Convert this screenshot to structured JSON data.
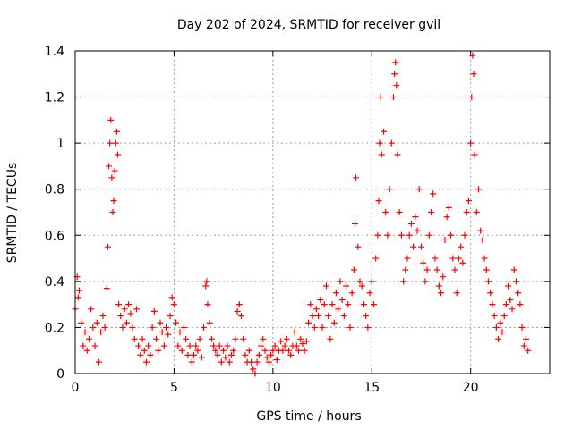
{
  "chart_data": {
    "type": "scatter",
    "title": "Day 202 of 2024, SRMTID for receiver gvil",
    "xlabel": "GPS time / hours",
    "ylabel": "SRMTID / TECUs",
    "xlim": [
      0,
      24
    ],
    "ylim": [
      0,
      1.4
    ],
    "x_ticks": [
      0,
      5,
      10,
      15,
      20
    ],
    "x_tick_labels": [
      "0",
      "5",
      "10",
      "15",
      "20"
    ],
    "y_ticks": [
      0,
      0.2,
      0.4,
      0.6,
      0.8,
      1.0,
      1.2,
      1.4
    ],
    "y_tick_labels": [
      "0",
      "0.2",
      "0.4",
      "0.6",
      "0.8",
      "1",
      "1.2",
      "1.4"
    ],
    "grid": true,
    "marker": "+",
    "series": [
      {
        "name": "SRMTID",
        "color": "#ff0000",
        "points": [
          [
            0.0,
            0.28
          ],
          [
            0.1,
            0.42
          ],
          [
            0.15,
            0.33
          ],
          [
            0.2,
            0.36
          ],
          [
            0.3,
            0.22
          ],
          [
            0.4,
            0.12
          ],
          [
            0.5,
            0.18
          ],
          [
            0.6,
            0.1
          ],
          [
            0.7,
            0.15
          ],
          [
            0.8,
            0.28
          ],
          [
            0.9,
            0.2
          ],
          [
            1.0,
            0.12
          ],
          [
            1.1,
            0.22
          ],
          [
            1.2,
            0.05
          ],
          [
            1.3,
            0.18
          ],
          [
            1.4,
            0.25
          ],
          [
            1.5,
            0.2
          ],
          [
            1.6,
            0.37
          ],
          [
            1.65,
            0.55
          ],
          [
            1.7,
            0.9
          ],
          [
            1.75,
            1.0
          ],
          [
            1.8,
            1.1
          ],
          [
            1.85,
            0.85
          ],
          [
            1.9,
            0.7
          ],
          [
            1.95,
            0.75
          ],
          [
            2.0,
            0.88
          ],
          [
            2.05,
            1.0
          ],
          [
            2.1,
            1.05
          ],
          [
            2.15,
            0.95
          ],
          [
            2.2,
            0.3
          ],
          [
            2.3,
            0.25
          ],
          [
            2.4,
            0.2
          ],
          [
            2.5,
            0.28
          ],
          [
            2.6,
            0.22
          ],
          [
            2.7,
            0.3
          ],
          [
            2.8,
            0.26
          ],
          [
            2.9,
            0.2
          ],
          [
            3.0,
            0.15
          ],
          [
            3.1,
            0.28
          ],
          [
            3.2,
            0.12
          ],
          [
            3.3,
            0.08
          ],
          [
            3.4,
            0.15
          ],
          [
            3.5,
            0.1
          ],
          [
            3.6,
            0.05
          ],
          [
            3.7,
            0.12
          ],
          [
            3.8,
            0.08
          ],
          [
            3.9,
            0.2
          ],
          [
            4.0,
            0.27
          ],
          [
            4.1,
            0.15
          ],
          [
            4.2,
            0.1
          ],
          [
            4.3,
            0.22
          ],
          [
            4.4,
            0.18
          ],
          [
            4.5,
            0.12
          ],
          [
            4.6,
            0.2
          ],
          [
            4.7,
            0.17
          ],
          [
            4.8,
            0.25
          ],
          [
            4.9,
            0.33
          ],
          [
            5.0,
            0.3
          ],
          [
            5.1,
            0.22
          ],
          [
            5.2,
            0.12
          ],
          [
            5.3,
            0.18
          ],
          [
            5.4,
            0.1
          ],
          [
            5.5,
            0.2
          ],
          [
            5.6,
            0.15
          ],
          [
            5.7,
            0.08
          ],
          [
            5.8,
            0.12
          ],
          [
            5.9,
            0.05
          ],
          [
            6.0,
            0.08
          ],
          [
            6.1,
            0.12
          ],
          [
            6.2,
            0.1
          ],
          [
            6.3,
            0.15
          ],
          [
            6.4,
            0.07
          ],
          [
            6.5,
            0.2
          ],
          [
            6.6,
            0.38
          ],
          [
            6.65,
            0.4
          ],
          [
            6.7,
            0.3
          ],
          [
            6.8,
            0.22
          ],
          [
            6.9,
            0.15
          ],
          [
            7.0,
            0.12
          ],
          [
            7.1,
            0.1
          ],
          [
            7.2,
            0.08
          ],
          [
            7.3,
            0.12
          ],
          [
            7.4,
            0.05
          ],
          [
            7.5,
            0.1
          ],
          [
            7.6,
            0.07
          ],
          [
            7.7,
            0.12
          ],
          [
            7.8,
            0.05
          ],
          [
            7.9,
            0.08
          ],
          [
            8.0,
            0.1
          ],
          [
            8.1,
            0.15
          ],
          [
            8.2,
            0.27
          ],
          [
            8.3,
            0.3
          ],
          [
            8.4,
            0.25
          ],
          [
            8.5,
            0.15
          ],
          [
            8.6,
            0.08
          ],
          [
            8.7,
            0.05
          ],
          [
            8.8,
            0.1
          ],
          [
            8.9,
            0.05
          ],
          [
            9.0,
            0.02
          ],
          [
            9.1,
            0.0
          ],
          [
            9.2,
            0.05
          ],
          [
            9.3,
            0.08
          ],
          [
            9.4,
            0.12
          ],
          [
            9.5,
            0.15
          ],
          [
            9.6,
            0.1
          ],
          [
            9.7,
            0.07
          ],
          [
            9.8,
            0.05
          ],
          [
            9.9,
            0.08
          ],
          [
            10.0,
            0.1
          ],
          [
            10.1,
            0.12
          ],
          [
            10.2,
            0.06
          ],
          [
            10.3,
            0.1
          ],
          [
            10.4,
            0.14
          ],
          [
            10.5,
            0.1
          ],
          [
            10.6,
            0.12
          ],
          [
            10.7,
            0.15
          ],
          [
            10.8,
            0.1
          ],
          [
            10.9,
            0.08
          ],
          [
            11.0,
            0.12
          ],
          [
            11.1,
            0.18
          ],
          [
            11.2,
            0.12
          ],
          [
            11.3,
            0.1
          ],
          [
            11.4,
            0.15
          ],
          [
            11.5,
            0.13
          ],
          [
            11.6,
            0.1
          ],
          [
            11.7,
            0.14
          ],
          [
            11.8,
            0.22
          ],
          [
            11.9,
            0.3
          ],
          [
            12.0,
            0.25
          ],
          [
            12.1,
            0.2
          ],
          [
            12.2,
            0.28
          ],
          [
            12.3,
            0.25
          ],
          [
            12.4,
            0.32
          ],
          [
            12.5,
            0.2
          ],
          [
            12.6,
            0.3
          ],
          [
            12.7,
            0.38
          ],
          [
            12.8,
            0.25
          ],
          [
            12.9,
            0.15
          ],
          [
            13.0,
            0.3
          ],
          [
            13.1,
            0.22
          ],
          [
            13.2,
            0.35
          ],
          [
            13.3,
            0.28
          ],
          [
            13.4,
            0.4
          ],
          [
            13.5,
            0.32
          ],
          [
            13.6,
            0.25
          ],
          [
            13.7,
            0.38
          ],
          [
            13.8,
            0.3
          ],
          [
            13.9,
            0.2
          ],
          [
            14.0,
            0.35
          ],
          [
            14.1,
            0.45
          ],
          [
            14.15,
            0.65
          ],
          [
            14.2,
            0.85
          ],
          [
            14.3,
            0.55
          ],
          [
            14.4,
            0.4
          ],
          [
            14.5,
            0.38
          ],
          [
            14.6,
            0.3
          ],
          [
            14.7,
            0.25
          ],
          [
            14.8,
            0.2
          ],
          [
            14.9,
            0.35
          ],
          [
            15.0,
            0.4
          ],
          [
            15.1,
            0.3
          ],
          [
            15.2,
            0.5
          ],
          [
            15.3,
            0.6
          ],
          [
            15.35,
            0.75
          ],
          [
            15.4,
            1.0
          ],
          [
            15.45,
            1.2
          ],
          [
            15.5,
            0.95
          ],
          [
            15.6,
            1.05
          ],
          [
            15.7,
            0.7
          ],
          [
            15.8,
            0.6
          ],
          [
            15.9,
            0.8
          ],
          [
            16.0,
            1.0
          ],
          [
            16.1,
            1.2
          ],
          [
            16.15,
            1.3
          ],
          [
            16.2,
            1.35
          ],
          [
            16.25,
            1.25
          ],
          [
            16.3,
            0.95
          ],
          [
            16.4,
            0.7
          ],
          [
            16.5,
            0.6
          ],
          [
            16.6,
            0.4
          ],
          [
            16.7,
            0.45
          ],
          [
            16.8,
            0.5
          ],
          [
            16.9,
            0.6
          ],
          [
            17.0,
            0.65
          ],
          [
            17.1,
            0.55
          ],
          [
            17.2,
            0.68
          ],
          [
            17.3,
            0.62
          ],
          [
            17.4,
            0.8
          ],
          [
            17.5,
            0.55
          ],
          [
            17.6,
            0.48
          ],
          [
            17.7,
            0.4
          ],
          [
            17.8,
            0.45
          ],
          [
            17.9,
            0.6
          ],
          [
            18.0,
            0.7
          ],
          [
            18.1,
            0.78
          ],
          [
            18.2,
            0.5
          ],
          [
            18.3,
            0.45
          ],
          [
            18.4,
            0.38
          ],
          [
            18.5,
            0.35
          ],
          [
            18.6,
            0.42
          ],
          [
            18.7,
            0.58
          ],
          [
            18.8,
            0.68
          ],
          [
            18.9,
            0.72
          ],
          [
            19.0,
            0.6
          ],
          [
            19.1,
            0.5
          ],
          [
            19.2,
            0.45
          ],
          [
            19.3,
            0.35
          ],
          [
            19.4,
            0.5
          ],
          [
            19.5,
            0.55
          ],
          [
            19.6,
            0.48
          ],
          [
            19.7,
            0.6
          ],
          [
            19.8,
            0.7
          ],
          [
            19.9,
            0.75
          ],
          [
            20.0,
            1.0
          ],
          [
            20.05,
            1.2
          ],
          [
            20.1,
            1.38
          ],
          [
            20.15,
            1.3
          ],
          [
            20.2,
            0.95
          ],
          [
            20.3,
            0.7
          ],
          [
            20.4,
            0.8
          ],
          [
            20.5,
            0.62
          ],
          [
            20.6,
            0.58
          ],
          [
            20.7,
            0.5
          ],
          [
            20.8,
            0.45
          ],
          [
            20.9,
            0.4
          ],
          [
            21.0,
            0.35
          ],
          [
            21.1,
            0.3
          ],
          [
            21.2,
            0.25
          ],
          [
            21.3,
            0.2
          ],
          [
            21.4,
            0.15
          ],
          [
            21.5,
            0.22
          ],
          [
            21.6,
            0.18
          ],
          [
            21.7,
            0.25
          ],
          [
            21.8,
            0.3
          ],
          [
            21.9,
            0.38
          ],
          [
            22.0,
            0.32
          ],
          [
            22.1,
            0.28
          ],
          [
            22.2,
            0.45
          ],
          [
            22.3,
            0.4
          ],
          [
            22.4,
            0.35
          ],
          [
            22.5,
            0.3
          ],
          [
            22.6,
            0.2
          ],
          [
            22.7,
            0.12
          ],
          [
            22.8,
            0.15
          ],
          [
            22.9,
            0.1
          ]
        ]
      }
    ]
  }
}
